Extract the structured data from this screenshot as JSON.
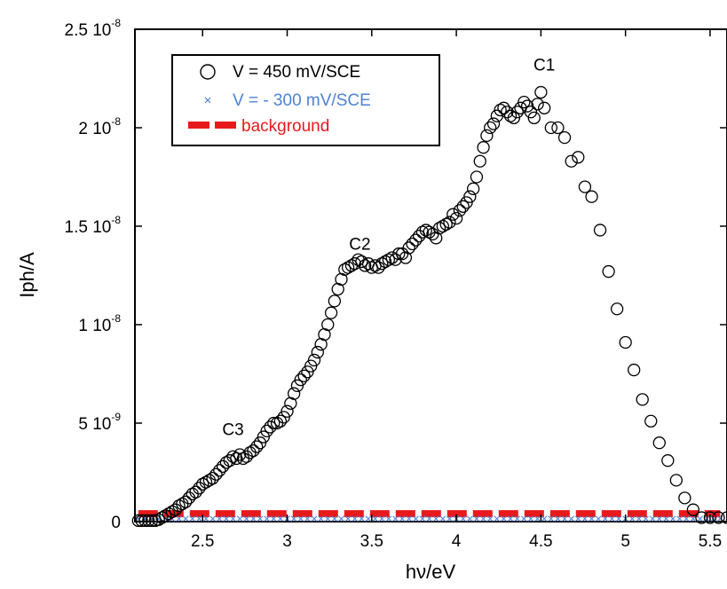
{
  "chart_data": {
    "type": "scatter",
    "title": "",
    "xlabel": "hν/eV",
    "ylabel": "Iph/A",
    "xlim": [
      2.1,
      5.6
    ],
    "ylim": [
      0,
      2.5e-08
    ],
    "grid": false,
    "legend_position": "top-left",
    "x_ticks": [
      {
        "value": 2.5,
        "label": "2.5"
      },
      {
        "value": 3.0,
        "label": "3"
      },
      {
        "value": 3.5,
        "label": "3.5"
      },
      {
        "value": 4.0,
        "label": "4"
      },
      {
        "value": 4.5,
        "label": "4.5"
      },
      {
        "value": 5.0,
        "label": "5"
      },
      {
        "value": 5.5,
        "label": "5.5"
      }
    ],
    "y_ticks": [
      {
        "value": 0,
        "mant": "0",
        "exp": ""
      },
      {
        "value": 5e-09,
        "mant": "5 10",
        "exp": "-9"
      },
      {
        "value": 1e-08,
        "mant": "1 10",
        "exp": "-8"
      },
      {
        "value": 1.5e-08,
        "mant": "1.5 10",
        "exp": "-8"
      },
      {
        "value": 2e-08,
        "mant": "2 10",
        "exp": "-8"
      },
      {
        "value": 2.5e-08,
        "mant": "2.5 10",
        "exp": "-8"
      }
    ],
    "annotations": [
      {
        "text": "C1",
        "x": 4.52,
        "y": 2.29e-08
      },
      {
        "text": "C2",
        "x": 3.43,
        "y": 1.38e-08
      },
      {
        "text": "C3",
        "x": 2.68,
        "y": 4.4e-09
      }
    ],
    "series": [
      {
        "name": "V = 450 mV/SCE",
        "marker": "open-circle",
        "color": "#000000",
        "points": [
          [
            2.12,
            5e-11
          ],
          [
            2.14,
            5e-11
          ],
          [
            2.16,
            5e-11
          ],
          [
            2.18,
            5e-11
          ],
          [
            2.2,
            5e-11
          ],
          [
            2.22,
            5e-11
          ],
          [
            2.24,
            1e-10
          ],
          [
            2.26,
            2e-10
          ],
          [
            2.28,
            3e-10
          ],
          [
            2.3,
            4e-10
          ],
          [
            2.32,
            5e-10
          ],
          [
            2.34,
            6e-10
          ],
          [
            2.36,
            8e-10
          ],
          [
            2.38,
            9e-10
          ],
          [
            2.4,
            1e-09
          ],
          [
            2.42,
            1.2e-09
          ],
          [
            2.44,
            1.4e-09
          ],
          [
            2.46,
            1.5e-09
          ],
          [
            2.48,
            1.7e-09
          ],
          [
            2.5,
            1.9e-09
          ],
          [
            2.52,
            2e-09
          ],
          [
            2.54,
            2.1e-09
          ],
          [
            2.56,
            2.2e-09
          ],
          [
            2.58,
            2.4e-09
          ],
          [
            2.6,
            2.6e-09
          ],
          [
            2.62,
            2.8e-09
          ],
          [
            2.64,
            3e-09
          ],
          [
            2.66,
            3.1e-09
          ],
          [
            2.68,
            3.3e-09
          ],
          [
            2.7,
            3.2e-09
          ],
          [
            2.72,
            3.4e-09
          ],
          [
            2.74,
            3.2e-09
          ],
          [
            2.76,
            3.3e-09
          ],
          [
            2.78,
            3.5e-09
          ],
          [
            2.8,
            3.6e-09
          ],
          [
            2.82,
            3.8e-09
          ],
          [
            2.84,
            4e-09
          ],
          [
            2.86,
            4.3e-09
          ],
          [
            2.88,
            4.6e-09
          ],
          [
            2.9,
            4.8e-09
          ],
          [
            2.92,
            5e-09
          ],
          [
            2.94,
            5e-09
          ],
          [
            2.96,
            5.1e-09
          ],
          [
            2.98,
            5.3e-09
          ],
          [
            3.0,
            5.6e-09
          ],
          [
            3.02,
            6e-09
          ],
          [
            3.04,
            6.5e-09
          ],
          [
            3.06,
            6.9e-09
          ],
          [
            3.08,
            7.2e-09
          ],
          [
            3.1,
            7.4e-09
          ],
          [
            3.12,
            7.6e-09
          ],
          [
            3.14,
            7.9e-09
          ],
          [
            3.16,
            8.2e-09
          ],
          [
            3.18,
            8.6e-09
          ],
          [
            3.2,
            9e-09
          ],
          [
            3.22,
            9.5e-09
          ],
          [
            3.24,
            1e-08
          ],
          [
            3.26,
            1.06e-08
          ],
          [
            3.28,
            1.12e-08
          ],
          [
            3.3,
            1.18e-08
          ],
          [
            3.32,
            1.23e-08
          ],
          [
            3.34,
            1.28e-08
          ],
          [
            3.36,
            1.29e-08
          ],
          [
            3.38,
            1.3e-08
          ],
          [
            3.4,
            1.31e-08
          ],
          [
            3.42,
            1.33e-08
          ],
          [
            3.44,
            1.32e-08
          ],
          [
            3.46,
            1.3e-08
          ],
          [
            3.48,
            1.31e-08
          ],
          [
            3.5,
            1.29e-08
          ],
          [
            3.52,
            1.3e-08
          ],
          [
            3.54,
            1.29e-08
          ],
          [
            3.56,
            1.31e-08
          ],
          [
            3.58,
            1.32e-08
          ],
          [
            3.6,
            1.33e-08
          ],
          [
            3.62,
            1.34e-08
          ],
          [
            3.64,
            1.33e-08
          ],
          [
            3.66,
            1.36e-08
          ],
          [
            3.68,
            1.36e-08
          ],
          [
            3.7,
            1.34e-08
          ],
          [
            3.72,
            1.39e-08
          ],
          [
            3.74,
            1.41e-08
          ],
          [
            3.76,
            1.43e-08
          ],
          [
            3.78,
            1.45e-08
          ],
          [
            3.8,
            1.47e-08
          ],
          [
            3.82,
            1.48e-08
          ],
          [
            3.84,
            1.47e-08
          ],
          [
            3.86,
            1.46e-08
          ],
          [
            3.88,
            1.44e-08
          ],
          [
            3.9,
            1.49e-08
          ],
          [
            3.92,
            1.5e-08
          ],
          [
            3.94,
            1.51e-08
          ],
          [
            3.96,
            1.52e-08
          ],
          [
            3.98,
            1.56e-08
          ],
          [
            4.0,
            1.54e-08
          ],
          [
            4.02,
            1.58e-08
          ],
          [
            4.04,
            1.6e-08
          ],
          [
            4.06,
            1.62e-08
          ],
          [
            4.08,
            1.65e-08
          ],
          [
            4.1,
            1.69e-08
          ],
          [
            4.12,
            1.75e-08
          ],
          [
            4.14,
            1.83e-08
          ],
          [
            4.16,
            1.9e-08
          ],
          [
            4.18,
            1.96e-08
          ],
          [
            4.2,
            2e-08
          ],
          [
            4.22,
            2.02e-08
          ],
          [
            4.24,
            2.06e-08
          ],
          [
            4.26,
            2.09e-08
          ],
          [
            4.28,
            2.1e-08
          ],
          [
            4.3,
            2.08e-08
          ],
          [
            4.32,
            2.06e-08
          ],
          [
            4.34,
            2.05e-08
          ],
          [
            4.36,
            2.08e-08
          ],
          [
            4.38,
            2.1e-08
          ],
          [
            4.4,
            2.13e-08
          ],
          [
            4.42,
            2.11e-08
          ],
          [
            4.44,
            2.08e-08
          ],
          [
            4.46,
            2.05e-08
          ],
          [
            4.48,
            2.12e-08
          ],
          [
            4.5,
            2.18e-08
          ],
          [
            4.52,
            2.1e-08
          ],
          [
            4.56,
            2e-08
          ],
          [
            4.6,
            2e-08
          ],
          [
            4.64,
            1.95e-08
          ],
          [
            4.68,
            1.83e-08
          ],
          [
            4.72,
            1.85e-08
          ],
          [
            4.76,
            1.7e-08
          ],
          [
            4.8,
            1.65e-08
          ],
          [
            4.85,
            1.48e-08
          ],
          [
            4.9,
            1.27e-08
          ],
          [
            4.95,
            1.08e-08
          ],
          [
            5.0,
            9.1e-09
          ],
          [
            5.05,
            7.7e-09
          ],
          [
            5.1,
            6.2e-09
          ],
          [
            5.15,
            5.1e-09
          ],
          [
            5.2,
            4e-09
          ],
          [
            5.25,
            3.1e-09
          ],
          [
            5.3,
            2.1e-09
          ],
          [
            5.35,
            1.2e-09
          ],
          [
            5.4,
            6e-10
          ],
          [
            5.45,
            2e-10
          ],
          [
            5.5,
            2e-10
          ],
          [
            5.55,
            2e-10
          ],
          [
            5.6,
            2e-10
          ]
        ]
      },
      {
        "name": "V = - 300 mV/SCE",
        "marker": "x",
        "color": "#4f82d6",
        "x_start": 2.12,
        "x_end": 5.58,
        "x_step": 0.04,
        "y": 1e-10
      },
      {
        "name": "background",
        "marker": "dashed-line",
        "color": "#e8191b",
        "x": [
          2.12,
          5.56
        ],
        "y": [
          4e-10,
          4e-10
        ]
      }
    ]
  }
}
